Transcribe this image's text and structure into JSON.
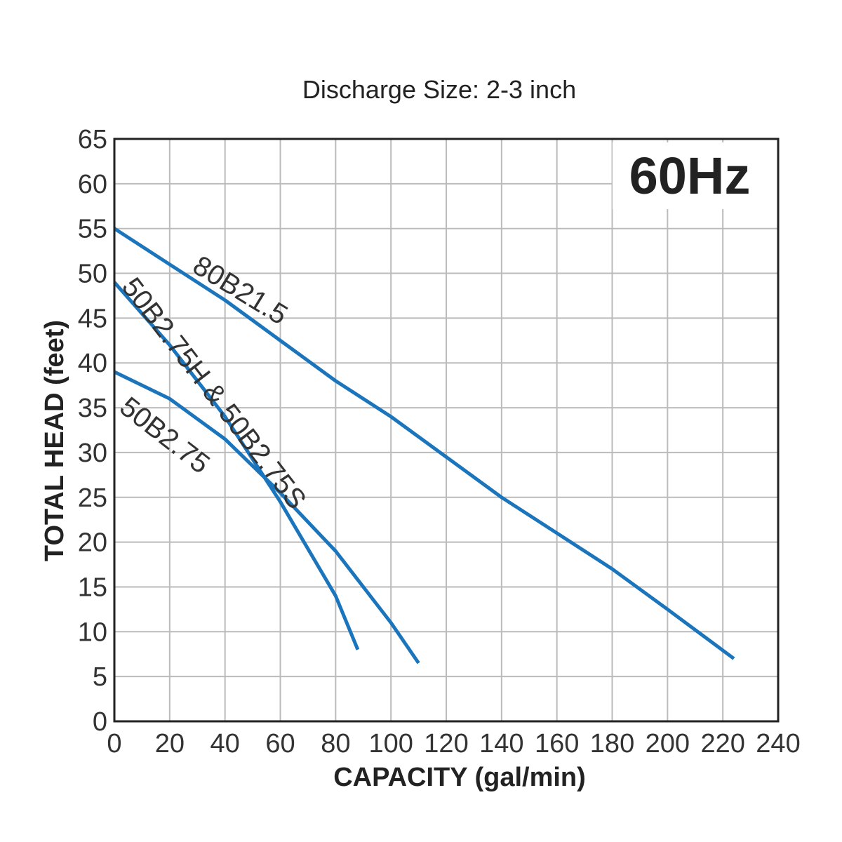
{
  "chart_data": {
    "type": "line",
    "title": "Discharge Size: 2-3 inch",
    "badge": "60Hz",
    "xlabel": "CAPACITY (gal/min)",
    "ylabel": "TOTAL HEAD (feet)",
    "xlim": [
      0,
      240
    ],
    "ylim": [
      0,
      65
    ],
    "x_ticks": [
      0,
      20,
      40,
      60,
      80,
      100,
      120,
      140,
      160,
      180,
      200,
      220,
      240
    ],
    "y_ticks": [
      0,
      5,
      10,
      15,
      20,
      25,
      30,
      35,
      40,
      45,
      50,
      55,
      60,
      65
    ],
    "grid": true,
    "line_color": "#1a75bc",
    "series": [
      {
        "name": "80B21.5",
        "x": [
          0,
          20,
          40,
          60,
          80,
          100,
          120,
          140,
          160,
          180,
          200,
          224
        ],
        "y": [
          55,
          51,
          47,
          42.5,
          38,
          34,
          29.5,
          25,
          21,
          17,
          12.5,
          7
        ]
      },
      {
        "name": "50B2.75H & 50B2.75S",
        "x": [
          0,
          20,
          40,
          60,
          80,
          88
        ],
        "y": [
          49,
          42,
          34,
          24.5,
          14,
          8
        ]
      },
      {
        "name": "50B2.75",
        "x": [
          0,
          20,
          40,
          60,
          80,
          100,
          110
        ],
        "y": [
          39,
          36,
          31.5,
          25.5,
          19,
          11,
          6.5
        ]
      }
    ]
  }
}
